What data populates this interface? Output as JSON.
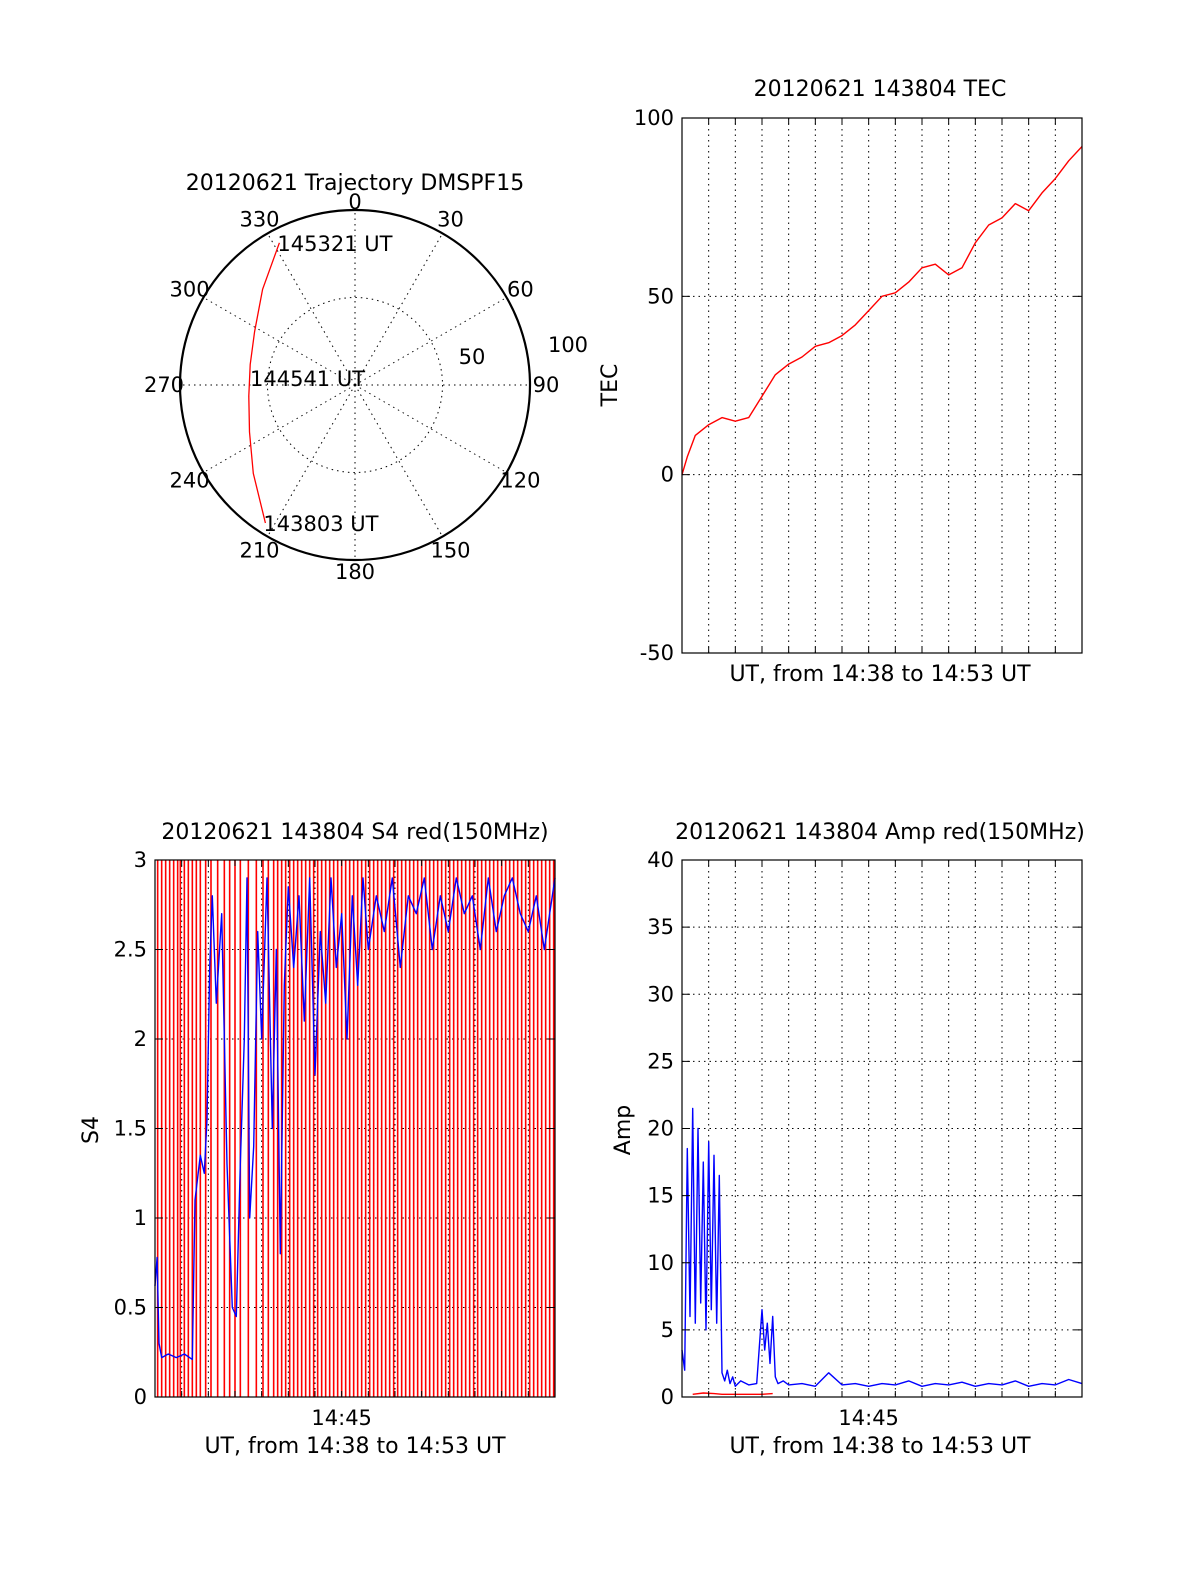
{
  "colors": {
    "red": "#ff0000",
    "blue": "#0000ff",
    "black": "#000000",
    "background": "#ffffff"
  },
  "chart_data": [
    {
      "type": "polar",
      "title": "20120621 Trajectory DMSPF15",
      "angle_ticks": [
        "0",
        "30",
        "60",
        "90",
        "120",
        "150",
        "180",
        "210",
        "240",
        "270",
        "300",
        "330"
      ],
      "radial_ticks": [
        "50",
        "100"
      ],
      "rlim": [
        0,
        100
      ],
      "series": [
        {
          "color": "red",
          "points": [
            {
              "az": 332,
              "r": 92
            },
            {
              "az": 316,
              "r": 76
            },
            {
              "az": 298,
              "r": 65
            },
            {
              "az": 281,
              "r": 61
            },
            {
              "az": 264,
              "r": 61
            },
            {
              "az": 246,
              "r": 66
            },
            {
              "az": 229,
              "r": 77
            },
            {
              "az": 213,
              "r": 94
            }
          ]
        }
      ],
      "annotations": [
        {
          "text": "145321 UT",
          "az": 332,
          "r": 92
        },
        {
          "text": "144541 UT",
          "az": 274,
          "r": 59
        },
        {
          "text": "143803 UT",
          "az": 213,
          "r": 94
        }
      ]
    },
    {
      "type": "line",
      "title": "20120621 143804 TEC",
      "xlabel": "UT, from 14:38 to 14:53 UT",
      "ylabel": "TEC",
      "xlim": [
        0,
        15
      ],
      "ylim": [
        -50,
        100
      ],
      "yticks": [
        "-50",
        "0",
        "50",
        "100"
      ],
      "series": [
        {
          "color": "red",
          "x": [
            0,
            0.2,
            0.5,
            1.0,
            1.5,
            2.0,
            2.5,
            3.0,
            3.5,
            4.0,
            4.5,
            5.0,
            5.5,
            6.0,
            6.5,
            7.0,
            7.5,
            8.0,
            8.5,
            9.0,
            9.5,
            10.0,
            10.5,
            11.0,
            11.5,
            12.0,
            12.5,
            13.0,
            13.5,
            14.0,
            14.5,
            15.0
          ],
          "y": [
            0,
            5,
            11,
            14,
            16,
            15,
            16,
            22,
            28,
            31,
            33,
            36,
            37,
            39,
            42,
            46,
            50,
            51,
            54,
            58,
            59,
            56,
            58,
            65,
            70,
            72,
            76,
            74,
            79,
            83,
            88,
            92
          ]
        }
      ]
    },
    {
      "type": "line",
      "title": "20120621 143804 S4 red(150MHz)",
      "xlabel": "UT, from 14:38 to 14:53 UT",
      "ylabel": "S4",
      "xlim": [
        0,
        15
      ],
      "ylim": [
        0,
        3
      ],
      "yticks": [
        "0",
        "0.5",
        "1",
        "1.5",
        "2",
        "2.5",
        "3"
      ],
      "xticks": [
        {
          "value": 7,
          "label": "14:45"
        }
      ],
      "red_spike_x": [
        0.1,
        0.25,
        0.4,
        0.55,
        0.7,
        0.85,
        0.95,
        1.1,
        1.25,
        1.4,
        1.55,
        1.7,
        1.9,
        2.1,
        2.35,
        2.6,
        2.8,
        3.0,
        3.2,
        3.5,
        3.8,
        4.05,
        4.25,
        4.45,
        4.6,
        4.75,
        4.9,
        5.05,
        5.2,
        5.35,
        5.5,
        5.65,
        5.8,
        5.95,
        6.1,
        6.25,
        6.4,
        6.55,
        6.7,
        6.85,
        7.0,
        7.15,
        7.3,
        7.45,
        7.6,
        7.75,
        7.9,
        8.05,
        8.2,
        8.35,
        8.5,
        8.65,
        8.8,
        8.95,
        9.1,
        9.25,
        9.4,
        9.55,
        9.7,
        9.85,
        10.0,
        10.15,
        10.3,
        10.45,
        10.6,
        10.75,
        10.9,
        11.05,
        11.2,
        11.35,
        11.5,
        11.65,
        11.8,
        11.95,
        12.1,
        12.25,
        12.4,
        12.55,
        12.7,
        12.85,
        13.0,
        13.15,
        13.3,
        13.45,
        13.6,
        13.75,
        13.9,
        14.05,
        14.2,
        14.35,
        14.5,
        14.65,
        14.8,
        14.95
      ],
      "series": [
        {
          "color": "blue",
          "x": [
            0,
            0.08,
            0.15,
            0.25,
            0.5,
            0.8,
            1.1,
            1.4,
            1.5,
            1.7,
            1.85,
            1.95,
            2.05,
            2.15,
            2.3,
            2.5,
            2.7,
            2.9,
            3.05,
            3.2,
            3.35,
            3.45,
            3.55,
            3.7,
            3.85,
            4.0,
            4.2,
            4.4,
            4.55,
            4.7,
            4.85,
            5.0,
            5.2,
            5.4,
            5.6,
            5.8,
            6.0,
            6.2,
            6.4,
            6.6,
            6.8,
            7.0,
            7.2,
            7.4,
            7.6,
            7.8,
            8.0,
            8.3,
            8.6,
            8.9,
            9.2,
            9.5,
            9.8,
            10.1,
            10.4,
            10.7,
            11.0,
            11.3,
            11.6,
            11.9,
            12.2,
            12.5,
            12.8,
            13.1,
            13.4,
            13.7,
            14.0,
            14.3,
            14.6,
            15.0
          ],
          "y": [
            0.62,
            0.78,
            0.3,
            0.22,
            0.24,
            0.22,
            0.24,
            0.21,
            1.1,
            1.35,
            1.25,
            1.55,
            2.4,
            2.8,
            2.2,
            2.7,
            1.3,
            0.5,
            0.45,
            1.3,
            2.0,
            2.9,
            1.0,
            1.4,
            2.6,
            2.0,
            2.9,
            1.5,
            2.5,
            0.8,
            2.3,
            2.85,
            2.4,
            2.8,
            2.1,
            2.9,
            1.8,
            2.6,
            2.2,
            2.9,
            2.4,
            2.7,
            2.0,
            2.8,
            2.3,
            2.9,
            2.5,
            2.8,
            2.6,
            2.9,
            2.4,
            2.8,
            2.7,
            2.9,
            2.5,
            2.8,
            2.6,
            2.9,
            2.7,
            2.8,
            2.5,
            2.9,
            2.6,
            2.8,
            2.9,
            2.7,
            2.6,
            2.8,
            2.5,
            2.9
          ]
        }
      ]
    },
    {
      "type": "line",
      "title": "20120621 143804 Amp red(150MHz)",
      "xlabel": "UT, from 14:38 to 14:53 UT",
      "ylabel": "Amp",
      "xlim": [
        0,
        15
      ],
      "ylim": [
        0,
        40
      ],
      "yticks": [
        "0",
        "5",
        "10",
        "15",
        "20",
        "25",
        "30",
        "35",
        "40"
      ],
      "xticks": [
        {
          "value": 7,
          "label": "14:45"
        }
      ],
      "series": [
        {
          "color": "blue",
          "x": [
            0,
            0.1,
            0.2,
            0.3,
            0.4,
            0.5,
            0.6,
            0.7,
            0.8,
            0.9,
            1.0,
            1.1,
            1.2,
            1.3,
            1.4,
            1.5,
            1.6,
            1.7,
            1.8,
            1.9,
            2.0,
            2.2,
            2.5,
            2.8,
            3.0,
            3.1,
            3.2,
            3.3,
            3.4,
            3.5,
            3.6,
            3.8,
            4.0,
            4.5,
            5.0,
            5.5,
            6.0,
            6.5,
            7.0,
            7.5,
            8.0,
            8.5,
            9.0,
            9.5,
            10.0,
            10.5,
            11.0,
            11.5,
            12.0,
            12.5,
            13.0,
            13.5,
            14.0,
            14.5,
            15.0
          ],
          "y": [
            3.5,
            2.0,
            18.5,
            6.0,
            21.5,
            5.5,
            20.0,
            7.0,
            17.5,
            5.0,
            19.0,
            6.5,
            18.0,
            5.5,
            16.5,
            1.8,
            1.2,
            2.0,
            1.0,
            1.5,
            0.8,
            1.2,
            0.9,
            1.0,
            6.5,
            3.5,
            5.5,
            2.5,
            6.0,
            1.5,
            1.0,
            1.2,
            0.9,
            1.0,
            0.8,
            1.8,
            0.9,
            1.0,
            0.8,
            1.0,
            0.9,
            1.2,
            0.8,
            1.0,
            0.9,
            1.1,
            0.8,
            1.0,
            0.9,
            1.2,
            0.8,
            1.0,
            0.9,
            1.3,
            1.0
          ]
        },
        {
          "color": "red",
          "x": [
            0.4,
            0.8,
            1.2,
            1.5,
            3.0,
            3.4
          ],
          "y": [
            0.2,
            0.3,
            0.25,
            0.2,
            0.2,
            0.25
          ]
        }
      ]
    }
  ]
}
